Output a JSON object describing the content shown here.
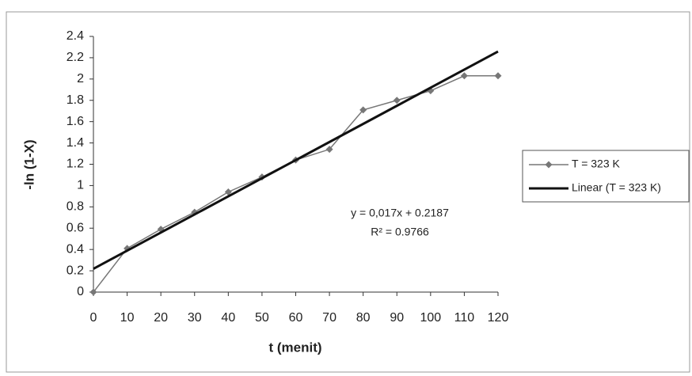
{
  "chart_data": {
    "type": "line",
    "xlabel": "t (menit)",
    "ylabel": "-ln (1-X)",
    "xlim": [
      0,
      120
    ],
    "ylim": [
      0,
      2.4
    ],
    "xticks": [
      0,
      10,
      20,
      30,
      40,
      50,
      60,
      70,
      80,
      90,
      100,
      110,
      120
    ],
    "yticks": [
      0,
      0.2,
      0.4,
      0.6,
      0.8,
      1,
      1.2,
      1.4,
      1.6,
      1.8,
      2,
      2.2,
      2.4
    ],
    "series": [
      {
        "name": "T = 323 K",
        "color": "#777777",
        "marker": "diamond",
        "x": [
          0,
          10,
          20,
          30,
          40,
          50,
          60,
          70,
          80,
          90,
          100,
          110,
          120
        ],
        "values": [
          0,
          0.41,
          0.59,
          0.75,
          0.94,
          1.08,
          1.24,
          1.34,
          1.71,
          1.8,
          1.89,
          2.03,
          2.03
        ]
      },
      {
        "name": "Linear (T = 323 K)",
        "color": "#111111",
        "x": [
          0,
          120
        ],
        "values": [
          0.2187,
          2.2587
        ]
      }
    ],
    "annotations": [
      "y = 0,017x + 0.2187",
      "R² = 0.9766"
    ],
    "legend": "right"
  }
}
